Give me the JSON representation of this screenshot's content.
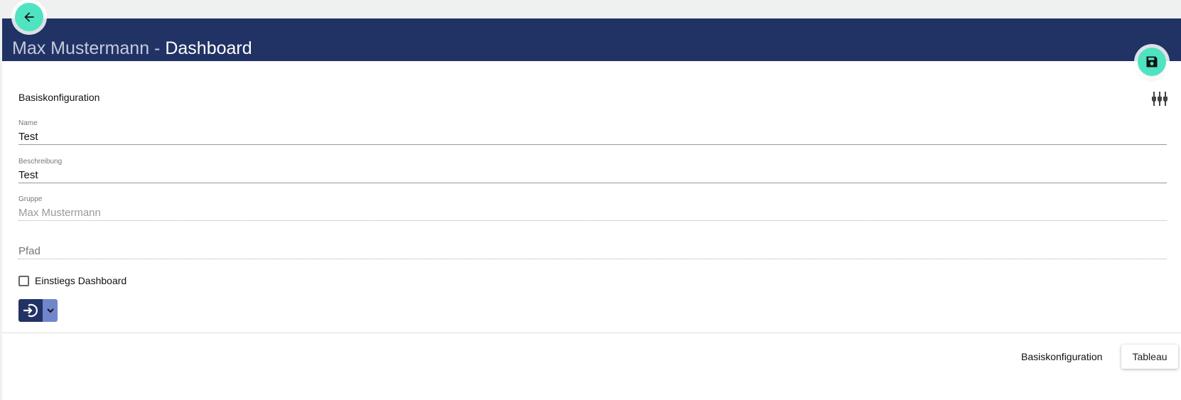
{
  "header": {
    "title_sub": "Max Mustermann - ",
    "title_main": "Dashboard",
    "back_icon": "arrow-left-icon",
    "save_icon": "floppy-disk-icon"
  },
  "section": {
    "title": "Basiskonfiguration",
    "filter_icon": "sliders-icon"
  },
  "fields": {
    "name": {
      "label": "Name",
      "value": "Test"
    },
    "beschreibung": {
      "label": "Beschreibung",
      "value": "Test"
    },
    "gruppe": {
      "label": "Gruppe",
      "value": "Max Mustermann"
    },
    "pfad": {
      "placeholder": "Pfad",
      "value": ""
    }
  },
  "checkbox": {
    "label": "Einstiegs Dashboard",
    "checked": false
  },
  "action_group": {
    "icon": "sign-in-icon",
    "dropdown_icon": "chevron-down-icon"
  },
  "footer_tabs": [
    {
      "label": "Basiskonfiguration",
      "active": true
    },
    {
      "label": "Tableau",
      "active": false
    }
  ],
  "colors": {
    "header": "#213265",
    "accent": "#50e3c2",
    "button_secondary": "#6f86cc"
  }
}
